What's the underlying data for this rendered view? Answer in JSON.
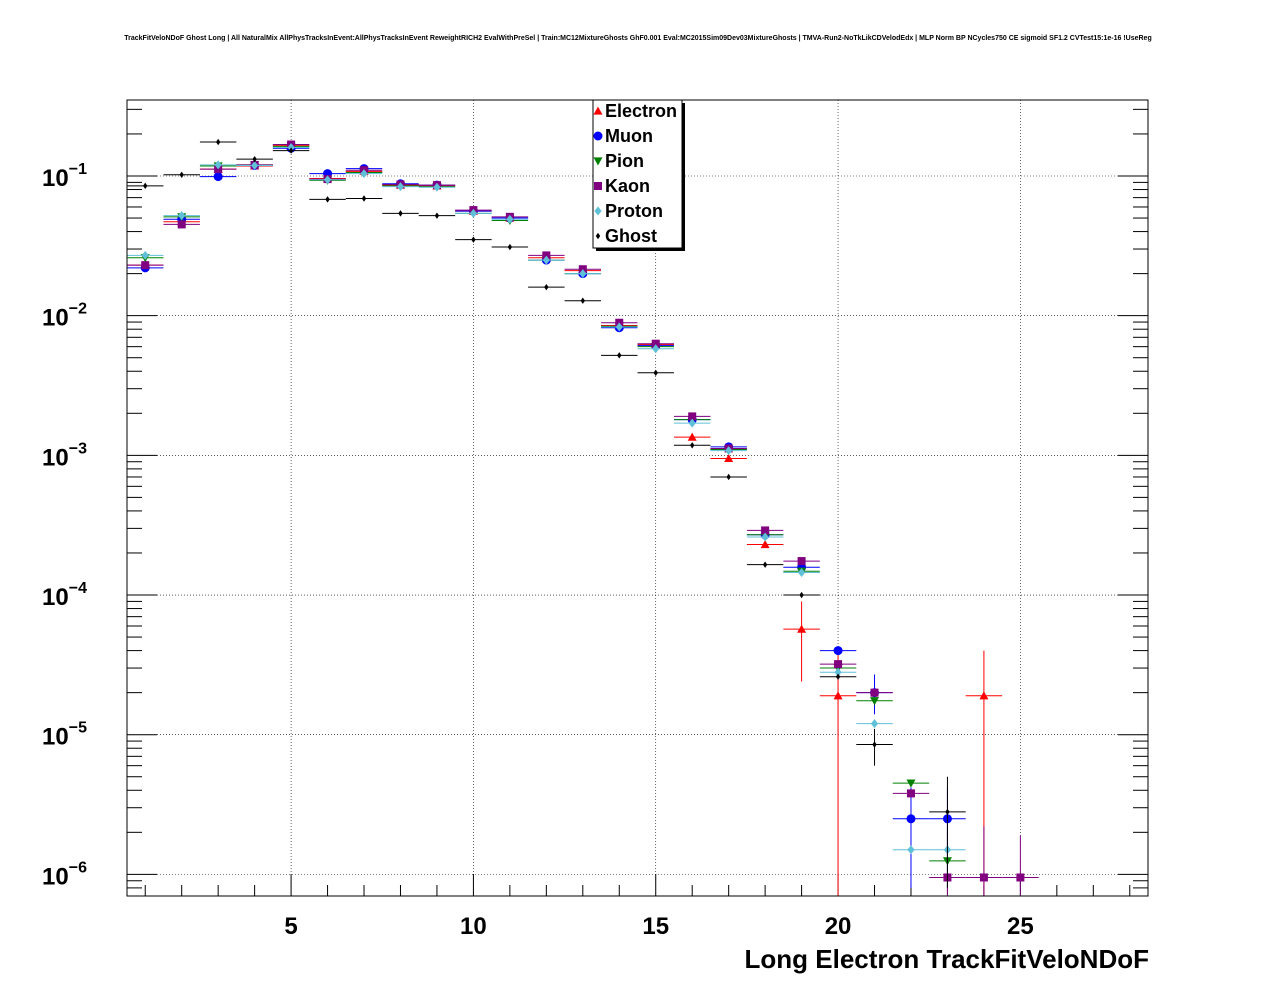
{
  "chart_data": {
    "type": "scatter",
    "title": "TrackFitVeloNDoF Ghost Long | All NaturalMix AllPhysTracksInEvent:AllPhysTracksInEvent ReweightRICH2 EvalWithPreSel | Train:MC12MixtureGhosts GhF0.001 Eval:MC2015Sim09Dev03MixtureGhosts | TMVA-Run2-NoTkLikCDVelodEdx | MLP Norm BP NCycles750 CE sigmoid SF1.2 CVTest15:1e-16 !UseReg",
    "xlabel": "Long Electron TrackFitVeloNDoF",
    "ylabel": "",
    "xlim": [
      0.5,
      28.5
    ],
    "ylim": [
      7e-07,
      0.35
    ],
    "yscale": "log",
    "grid": true,
    "legend_position": "top-center",
    "x_ticks": [
      "5",
      "10",
      "15",
      "20",
      "25"
    ],
    "y_ticks": [
      {
        "mantissa": "10",
        "exp": "−1"
      },
      {
        "mantissa": "10",
        "exp": "−2"
      },
      {
        "mantissa": "10",
        "exp": "−3"
      },
      {
        "mantissa": "10",
        "exp": "−4"
      },
      {
        "mantissa": "10",
        "exp": "−5"
      },
      {
        "mantissa": "10",
        "exp": "−6"
      }
    ],
    "series": [
      {
        "name": "Electron",
        "color": "#ff0000",
        "marker": "triangle-up",
        "points": [
          [
            1,
            0.023
          ],
          [
            2,
            0.047
          ],
          [
            3,
            0.112
          ],
          [
            4,
            0.118
          ],
          [
            5,
            0.165
          ],
          [
            6,
            0.096
          ],
          [
            7,
            0.108
          ],
          [
            8,
            0.086
          ],
          [
            9,
            0.085
          ],
          [
            10,
            0.056
          ],
          [
            11,
            0.05
          ],
          [
            12,
            0.026
          ],
          [
            13,
            0.021
          ],
          [
            14,
            0.0085
          ],
          [
            15,
            0.0062
          ],
          [
            16,
            0.00135
          ],
          [
            17,
            0.00095
          ],
          [
            18,
            0.00023
          ],
          [
            19,
            5.7e-05
          ],
          [
            20,
            1.9e-05
          ],
          [
            24,
            1.9e-05
          ]
        ]
      },
      {
        "name": "Muon",
        "color": "#0000ff",
        "marker": "circle",
        "points": [
          [
            1,
            0.022
          ],
          [
            2,
            0.049
          ],
          [
            3,
            0.099
          ],
          [
            4,
            0.119
          ],
          [
            5,
            0.158
          ],
          [
            6,
            0.104
          ],
          [
            7,
            0.113
          ],
          [
            8,
            0.088
          ],
          [
            9,
            0.086
          ],
          [
            10,
            0.056
          ],
          [
            11,
            0.05
          ],
          [
            12,
            0.025
          ],
          [
            13,
            0.02
          ],
          [
            14,
            0.0082
          ],
          [
            15,
            0.0061
          ],
          [
            16,
            0.0018
          ],
          [
            17,
            0.00115
          ],
          [
            18,
            0.00027
          ],
          [
            19,
            0.000158
          ],
          [
            20,
            4e-05
          ],
          [
            21,
            2e-05
          ],
          [
            22,
            2.5e-06
          ],
          [
            23,
            2.5e-06
          ]
        ]
      },
      {
        "name": "Pion",
        "color": "#008000",
        "marker": "triangle-down",
        "points": [
          [
            1,
            0.026
          ],
          [
            2,
            0.051
          ],
          [
            3,
            0.118
          ],
          [
            4,
            0.12
          ],
          [
            5,
            0.163
          ],
          [
            6,
            0.093
          ],
          [
            7,
            0.106
          ],
          [
            8,
            0.085
          ],
          [
            9,
            0.084
          ],
          [
            10,
            0.054
          ],
          [
            11,
            0.048
          ],
          [
            12,
            0.025
          ],
          [
            13,
            0.02
          ],
          [
            14,
            0.0084
          ],
          [
            15,
            0.006
          ],
          [
            16,
            0.0018
          ],
          [
            17,
            0.0011
          ],
          [
            18,
            0.00027
          ],
          [
            19,
            0.000148
          ],
          [
            20,
            3e-05
          ],
          [
            21,
            1.75e-05
          ],
          [
            22,
            4.5e-06
          ],
          [
            23,
            1.25e-06
          ]
        ]
      },
      {
        "name": "Kaon",
        "color": "#800080",
        "marker": "square",
        "points": [
          [
            1,
            0.023
          ],
          [
            2,
            0.045
          ],
          [
            3,
            0.112
          ],
          [
            4,
            0.12
          ],
          [
            5,
            0.168
          ],
          [
            6,
            0.095
          ],
          [
            7,
            0.11
          ],
          [
            8,
            0.087
          ],
          [
            9,
            0.086
          ],
          [
            10,
            0.057
          ],
          [
            11,
            0.051
          ],
          [
            12,
            0.027
          ],
          [
            13,
            0.0215
          ],
          [
            14,
            0.0089
          ],
          [
            15,
            0.0063
          ],
          [
            16,
            0.0019
          ],
          [
            17,
            0.00112
          ],
          [
            18,
            0.00029
          ],
          [
            19,
            0.000175
          ],
          [
            20,
            3.2e-05
          ],
          [
            21,
            2e-05
          ],
          [
            22,
            3.8e-06
          ],
          [
            23,
            9.5e-07
          ],
          [
            24,
            9.5e-07
          ],
          [
            25,
            9.5e-07
          ]
        ]
      },
      {
        "name": "Proton",
        "color": "#5fc0d8",
        "marker": "diamond",
        "points": [
          [
            1,
            0.027
          ],
          [
            2,
            0.052
          ],
          [
            3,
            0.12
          ],
          [
            4,
            0.119
          ],
          [
            5,
            0.16
          ],
          [
            6,
            0.094
          ],
          [
            7,
            0.104
          ],
          [
            8,
            0.084
          ],
          [
            9,
            0.083
          ],
          [
            10,
            0.054
          ],
          [
            11,
            0.049
          ],
          [
            12,
            0.025
          ],
          [
            13,
            0.02
          ],
          [
            14,
            0.0083
          ],
          [
            15,
            0.0058
          ],
          [
            16,
            0.0017
          ],
          [
            17,
            0.00108
          ],
          [
            18,
            0.00026
          ],
          [
            19,
            0.000145
          ],
          [
            20,
            2.8e-05
          ],
          [
            21,
            1.2e-05
          ],
          [
            22,
            1.5e-06
          ],
          [
            23,
            1.5e-06
          ]
        ]
      },
      {
        "name": "Ghost",
        "color": "#000000",
        "marker": "diamond-small",
        "points": [
          [
            1,
            0.085
          ],
          [
            2,
            0.102
          ],
          [
            3,
            0.175
          ],
          [
            4,
            0.132
          ],
          [
            5,
            0.152
          ],
          [
            6,
            0.068
          ],
          [
            7,
            0.069
          ],
          [
            8,
            0.054
          ],
          [
            9,
            0.052
          ],
          [
            10,
            0.035
          ],
          [
            11,
            0.031
          ],
          [
            12,
            0.016
          ],
          [
            13,
            0.0128
          ],
          [
            14,
            0.0052
          ],
          [
            15,
            0.0039
          ],
          [
            16,
            0.00118
          ],
          [
            17,
            0.0007
          ],
          [
            18,
            0.000165
          ],
          [
            19,
            0.0001
          ],
          [
            20,
            2.6e-05
          ],
          [
            21,
            8.5e-06
          ],
          [
            23,
            2.8e-06
          ]
        ]
      }
    ],
    "error_bars": {
      "Electron": {
        "19": [
          2.4e-05,
          9e-05
        ],
        "20": [
          4e-07,
          3.8e-05
        ],
        "24": [
          4e-07,
          4e-05
        ]
      },
      "Muon": {
        "21": [
          1.4e-05,
          2.7e-05
        ],
        "22": [
          8e-07,
          4.2e-06
        ],
        "23": [
          8e-07,
          4.2e-06
        ]
      },
      "Kaon": {
        "23": [
          3e-07,
          2.2e-06
        ],
        "24": [
          3e-07,
          2.2e-06
        ],
        "25": [
          3e-07,
          1.9e-06
        ]
      },
      "Ghost": {
        "21": [
          6e-06,
          1.1e-05
        ],
        "23": [
          8e-07,
          5e-06
        ]
      }
    }
  }
}
